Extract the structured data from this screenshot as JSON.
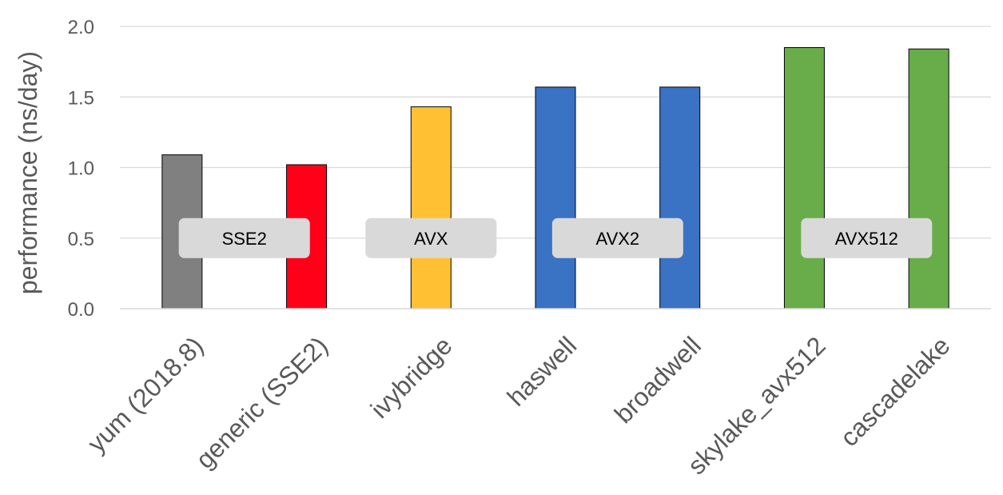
{
  "chart_data": {
    "type": "bar",
    "title": "",
    "xlabel": "",
    "ylabel": "performance (ns/day)",
    "ylim": [
      0,
      2.0
    ],
    "yticks": [
      "0.0",
      "0.5",
      "1.0",
      "1.5",
      "2.0"
    ],
    "grid": true,
    "legend": "none",
    "categories": [
      "yum (2018.8)",
      "generic (SSE2)",
      "ivybridge",
      "haswell",
      "broadwell",
      "skylake_avx512",
      "cascadelake"
    ],
    "values": [
      1.09,
      1.02,
      1.43,
      1.57,
      1.57,
      1.85,
      1.84
    ],
    "bar_colors": [
      "#808080",
      "#ff0018",
      "#ffc133",
      "#3a72c4",
      "#3a72c4",
      "#68ad4a",
      "#68ad4a"
    ],
    "annotations": [
      {
        "text": "SSE2",
        "span": [
          0,
          1
        ]
      },
      {
        "text": "AVX",
        "span": [
          2,
          2
        ]
      },
      {
        "text": "AVX2",
        "span": [
          3,
          4
        ]
      },
      {
        "text": "AVX512",
        "span": [
          5,
          6
        ]
      }
    ]
  }
}
